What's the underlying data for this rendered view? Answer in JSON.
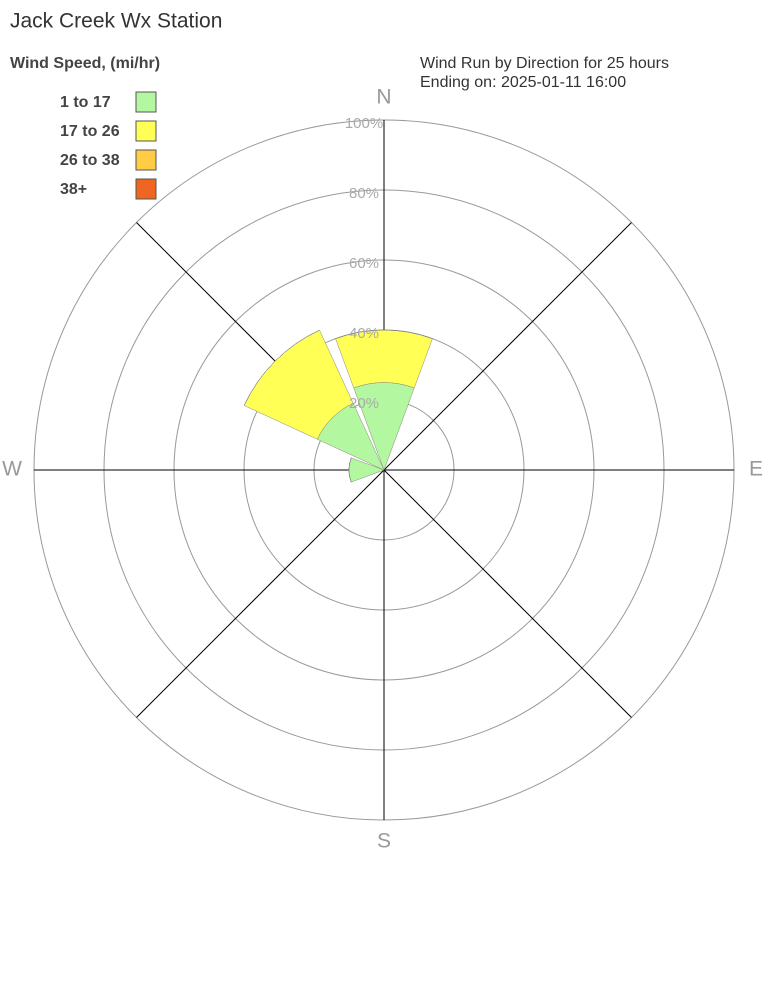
{
  "chart_data": {
    "type": "windrose",
    "title": "Jack Creek Wx Station",
    "subtitle": [
      "Wind Run by Direction for 25 hours",
      "Ending on: 2025-01-11 16:00"
    ],
    "legend_title": "Wind Speed, (mi/hr)",
    "categories": [
      "N",
      null,
      "E",
      null,
      "S",
      null,
      "W",
      null
    ],
    "series": [
      {
        "name": "1 to 17",
        "color": "#b3f7a0",
        "values": [
          25,
          0,
          0,
          0,
          0,
          0,
          10,
          21
        ]
      },
      {
        "name": "17 to 26",
        "color": "#ffff55",
        "values": [
          15,
          0,
          0,
          0,
          0,
          0,
          0,
          23
        ]
      },
      {
        "name": "26 to 38",
        "color": "#ffcc44",
        "values": [
          0,
          0,
          0,
          0,
          0,
          0,
          0,
          0
        ]
      },
      {
        "name": "38+",
        "color": "#ee6622",
        "values": [
          0,
          0,
          0,
          0,
          0,
          0,
          0,
          0
        ]
      }
    ],
    "rlim": [
      0,
      100
    ],
    "rticks": [
      {
        "value": 20,
        "label": "20%"
      },
      {
        "value": 40,
        "label": "40%"
      },
      {
        "value": 60,
        "label": "60%"
      },
      {
        "value": 80,
        "label": "80%"
      },
      {
        "value": 100,
        "label": "100%"
      }
    ]
  }
}
